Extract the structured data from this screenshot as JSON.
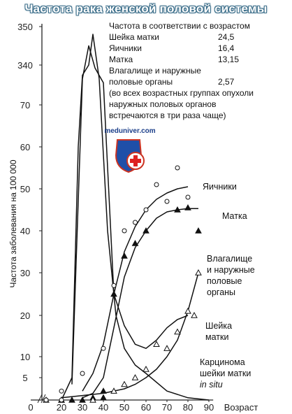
{
  "title": "Частота рака женской половой системы",
  "watermark": "meduniver.com",
  "info_box": {
    "heading": "Частота в соответствии с возрастом",
    "rows": [
      {
        "label": "Шейка матки",
        "value": "24,5"
      },
      {
        "label": "Яичники",
        "value": "16,4"
      },
      {
        "label": "Матка",
        "value": "13,15"
      },
      {
        "label": "Влагалище и наружные",
        "value": ""
      },
      {
        "label": "половые органы",
        "value": "2,57"
      }
    ],
    "note": [
      "(во всех возрастных группах опухоли",
      "наружных половых органов",
      "встречаются в три раза чаще)"
    ]
  },
  "chart_data": {
    "type": "line",
    "ylabel": "Частота заболевания на 100 000",
    "xlabel": "Возраст",
    "x_ticks": [
      "0",
      "20",
      "30",
      "40",
      "50",
      "60",
      "70",
      "80",
      "90"
    ],
    "y_ticks": [
      "5",
      "10",
      "20",
      "30",
      "40",
      "50",
      "60",
      "70",
      "340",
      "350"
    ],
    "y_axis_broken": true,
    "series": [
      {
        "name": "Яичники",
        "marker": "circle-open",
        "x": [
          15,
          20,
          30,
          40,
          45,
          50,
          55,
          60,
          65,
          70,
          75,
          80
        ],
        "y": [
          0,
          2,
          6,
          12,
          27,
          40,
          42,
          45,
          51,
          47,
          55,
          48
        ],
        "curve_x": [
          30,
          35,
          40,
          45,
          50,
          55,
          60,
          65,
          70,
          75,
          80
        ],
        "curve_y": [
          2,
          6,
          13,
          25,
          35,
          41,
          45,
          47.5,
          49,
          50,
          50.5
        ]
      },
      {
        "name": "Матка",
        "marker": "triangle-filled",
        "x": [
          35,
          40,
          45,
          50,
          55,
          60,
          75,
          80,
          85
        ],
        "y": [
          0.5,
          2,
          25,
          34,
          37,
          40,
          45,
          45.5,
          40
        ],
        "curve_x": [
          30,
          35,
          40,
          45,
          50,
          55,
          60,
          65,
          70,
          75,
          80,
          85
        ],
        "curve_y": [
          0.5,
          1.5,
          5,
          17,
          29,
          36,
          40,
          43,
          44.5,
          45,
          45.3,
          45.3
        ]
      },
      {
        "name": "Влагалище и наружные половые органы",
        "marker": "triangle-open",
        "x": [
          45,
          50,
          55,
          60,
          65,
          70,
          75,
          80,
          83,
          85
        ],
        "y": [
          2,
          3.5,
          5,
          7,
          13,
          12,
          16,
          21,
          20,
          30
        ],
        "curve_x": [
          20,
          30,
          40,
          50,
          55,
          60,
          65,
          70,
          75,
          80,
          85
        ],
        "curve_y": [
          0.5,
          1,
          1.5,
          2.5,
          3.5,
          5,
          7,
          10,
          14,
          21,
          30
        ]
      },
      {
        "name": "Шейка матки",
        "curve_x": [
          25,
          30,
          33,
          36,
          40,
          45,
          50,
          55,
          60,
          65,
          70,
          75,
          80
        ],
        "curve_y": [
          3.5,
          150,
          345,
          300,
          95,
          25,
          17.5,
          13,
          12,
          14,
          17,
          19,
          20
        ]
      },
      {
        "name": "Карцинома шейки матки in situ",
        "curve_x": [
          20,
          25,
          28,
          30,
          33,
          35,
          38,
          42,
          46,
          50,
          55,
          60,
          70,
          80,
          90
        ],
        "curve_y": [
          0,
          5,
          60,
          200,
          340,
          348,
          150,
          40,
          20,
          12,
          8,
          6,
          2,
          0.5,
          0
        ]
      }
    ],
    "annotations": [
      {
        "text": [
          "Яичники"
        ]
      },
      {
        "text": [
          "Матка"
        ]
      },
      {
        "text": [
          "Влагалище",
          "и наружные",
          "половые",
          "органы"
        ]
      },
      {
        "text": [
          "Шейка",
          "матки"
        ]
      },
      {
        "text": [
          "Карцинома",
          "шейки матки"
        ],
        "italic_line": "in situ"
      }
    ]
  }
}
